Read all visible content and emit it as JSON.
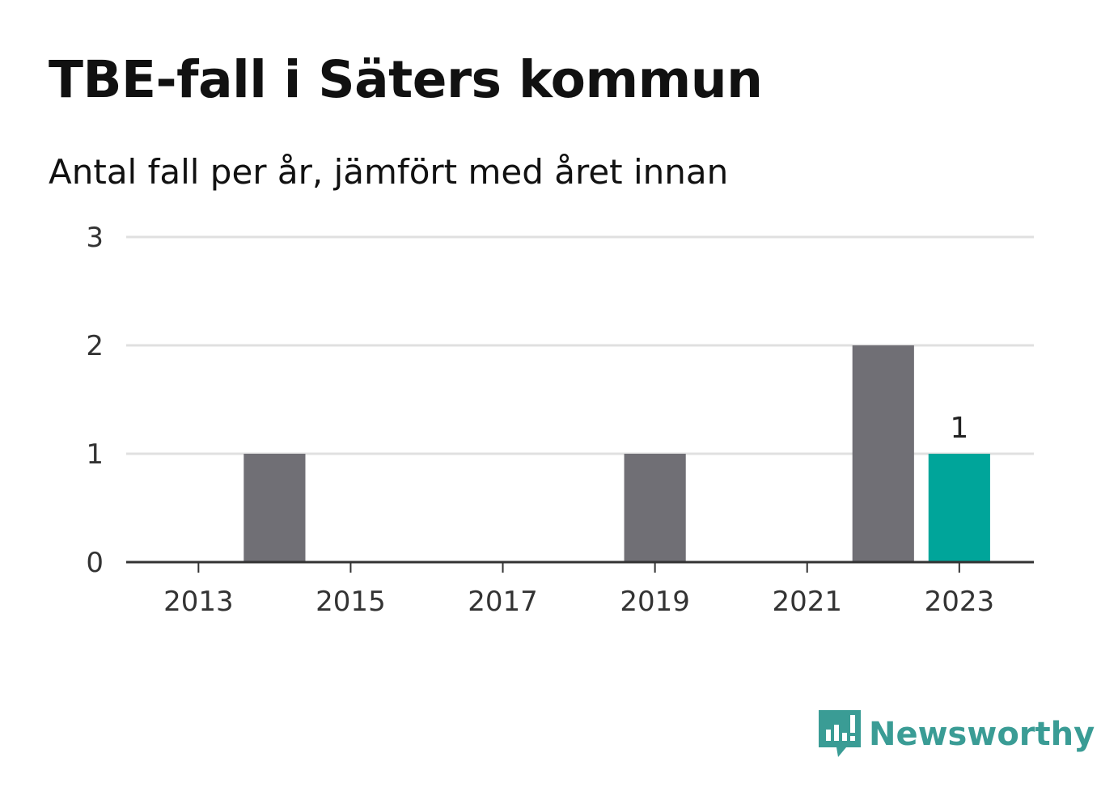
{
  "title": "TBE-fall i Säters kommun",
  "subtitle": "Antal fall per år, jämfört med året innan",
  "brand": {
    "name": "Newsworthy",
    "logo_icon": "bar-chart-speech-bubble-icon",
    "color": "#3a9c95"
  },
  "chart_data": {
    "type": "bar",
    "categories": [
      "2013",
      "2014",
      "2015",
      "2016",
      "2017",
      "2018",
      "2019",
      "2020",
      "2021",
      "2022",
      "2023"
    ],
    "values": [
      0,
      1,
      0,
      0,
      0,
      0,
      1,
      0,
      0,
      2,
      1
    ],
    "x_tick_labels": [
      "2013",
      "2015",
      "2017",
      "2019",
      "2021",
      "2023"
    ],
    "y_ticks": [
      0,
      1,
      2,
      3
    ],
    "ylim": [
      0,
      3
    ],
    "highlight_category": "2023",
    "data_labels": [
      {
        "category": "2023",
        "text": "1"
      }
    ],
    "colors": {
      "default_bar": "#706f75",
      "highlight_bar": "#00a59a",
      "grid": "#e0e0e0",
      "axis": "#333333"
    },
    "grid": true
  }
}
